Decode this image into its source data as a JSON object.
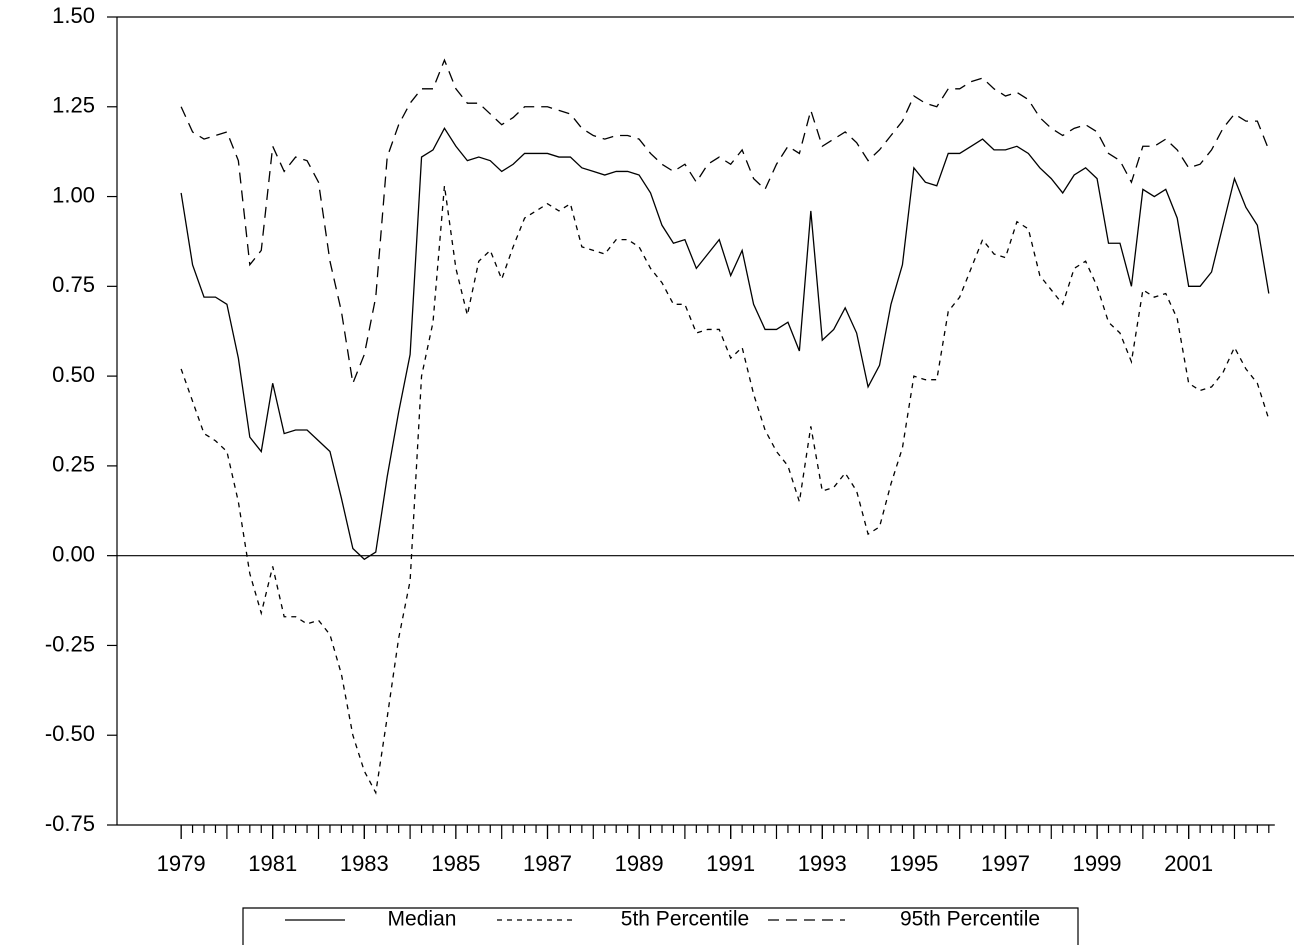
{
  "chart_data": {
    "type": "line",
    "x": [
      1979,
      1979.25,
      1979.5,
      1979.75,
      1980,
      1980.25,
      1980.5,
      1980.75,
      1981,
      1981.25,
      1981.5,
      1981.75,
      1982,
      1982.25,
      1982.5,
      1982.75,
      1983,
      1983.25,
      1983.5,
      1983.75,
      1984,
      1984.25,
      1984.5,
      1984.75,
      1985,
      1985.25,
      1985.5,
      1985.75,
      1986,
      1986.25,
      1986.5,
      1986.75,
      1987,
      1987.25,
      1987.5,
      1987.75,
      1988,
      1988.25,
      1988.5,
      1988.75,
      1989,
      1989.25,
      1989.5,
      1989.75,
      1990,
      1990.25,
      1990.5,
      1990.75,
      1991,
      1991.25,
      1991.5,
      1991.75,
      1992,
      1992.25,
      1992.5,
      1992.75,
      1993,
      1993.25,
      1993.5,
      1993.75,
      1994,
      1994.25,
      1994.5,
      1994.75,
      1995,
      1995.25,
      1995.5,
      1995.75,
      1996,
      1996.25,
      1996.5,
      1996.75,
      1997,
      1997.25,
      1997.5,
      1997.75,
      1998,
      1998.25,
      1998.5,
      1998.75,
      1999,
      1999.25,
      1999.5,
      1999.75,
      2000,
      2000.25,
      2000.5,
      2000.75,
      2001,
      2001.25,
      2001.5,
      2001.75,
      2002,
      2002.25,
      2002.5,
      2002.75
    ],
    "series": [
      {
        "name": "Median",
        "color": "#000000",
        "dash": "solid",
        "values": [
          1.01,
          0.81,
          0.72,
          0.72,
          0.7,
          0.55,
          0.33,
          0.29,
          0.48,
          0.34,
          0.35,
          0.35,
          0.32,
          0.29,
          0.16,
          0.02,
          -0.01,
          0.01,
          0.22,
          0.4,
          0.56,
          1.11,
          1.13,
          1.19,
          1.14,
          1.1,
          1.11,
          1.1,
          1.07,
          1.09,
          1.12,
          1.12,
          1.12,
          1.11,
          1.11,
          1.08,
          1.07,
          1.06,
          1.07,
          1.07,
          1.06,
          1.01,
          0.92,
          0.87,
          0.88,
          0.8,
          0.84,
          0.88,
          0.78,
          0.85,
          0.7,
          0.63,
          0.63,
          0.65,
          0.57,
          0.96,
          0.6,
          0.63,
          0.69,
          0.62,
          0.47,
          0.53,
          0.7,
          0.81,
          1.08,
          1.04,
          1.03,
          1.12,
          1.12,
          1.14,
          1.16,
          1.13,
          1.13,
          1.14,
          1.12,
          1.08,
          1.05,
          1.01,
          1.06,
          1.08,
          1.05,
          0.87,
          0.87,
          0.75,
          1.02,
          1.0,
          1.02,
          0.94,
          0.75,
          0.75,
          0.79,
          0.92,
          1.05,
          0.97,
          0.92,
          0.73
        ]
      },
      {
        "name": "5th Percentile",
        "color": "#000000",
        "dash": "short",
        "values": [
          0.52,
          0.43,
          0.34,
          0.32,
          0.29,
          0.15,
          -0.05,
          -0.16,
          -0.03,
          -0.17,
          -0.17,
          -0.19,
          -0.18,
          -0.22,
          -0.33,
          -0.5,
          -0.6,
          -0.66,
          -0.45,
          -0.23,
          -0.07,
          0.5,
          0.65,
          1.03,
          0.8,
          0.67,
          0.82,
          0.85,
          0.77,
          0.86,
          0.94,
          0.96,
          0.98,
          0.96,
          0.98,
          0.86,
          0.85,
          0.84,
          0.88,
          0.88,
          0.86,
          0.8,
          0.76,
          0.7,
          0.7,
          0.62,
          0.63,
          0.63,
          0.55,
          0.58,
          0.45,
          0.35,
          0.29,
          0.25,
          0.15,
          0.36,
          0.18,
          0.19,
          0.23,
          0.18,
          0.06,
          0.08,
          0.2,
          0.3,
          0.5,
          0.49,
          0.49,
          0.68,
          0.72,
          0.8,
          0.88,
          0.84,
          0.83,
          0.93,
          0.91,
          0.78,
          0.74,
          0.7,
          0.8,
          0.82,
          0.75,
          0.65,
          0.62,
          0.54,
          0.74,
          0.72,
          0.73,
          0.66,
          0.48,
          0.46,
          0.47,
          0.51,
          0.58,
          0.52,
          0.48,
          0.38
        ]
      },
      {
        "name": "95th Percentile",
        "color": "#000000",
        "dash": "long",
        "values": [
          1.25,
          1.18,
          1.16,
          1.17,
          1.18,
          1.1,
          0.81,
          0.85,
          1.14,
          1.07,
          1.11,
          1.1,
          1.04,
          0.82,
          0.68,
          0.48,
          0.56,
          0.72,
          1.11,
          1.2,
          1.26,
          1.3,
          1.3,
          1.38,
          1.3,
          1.26,
          1.26,
          1.23,
          1.2,
          1.22,
          1.25,
          1.25,
          1.25,
          1.24,
          1.23,
          1.19,
          1.17,
          1.16,
          1.17,
          1.17,
          1.16,
          1.12,
          1.09,
          1.07,
          1.09,
          1.04,
          1.09,
          1.11,
          1.09,
          1.13,
          1.05,
          1.02,
          1.09,
          1.14,
          1.12,
          1.24,
          1.14,
          1.16,
          1.18,
          1.15,
          1.1,
          1.13,
          1.17,
          1.21,
          1.28,
          1.26,
          1.25,
          1.3,
          1.3,
          1.32,
          1.33,
          1.3,
          1.28,
          1.29,
          1.27,
          1.22,
          1.19,
          1.17,
          1.19,
          1.2,
          1.18,
          1.12,
          1.1,
          1.04,
          1.14,
          1.14,
          1.16,
          1.13,
          1.08,
          1.09,
          1.13,
          1.19,
          1.23,
          1.21,
          1.21,
          1.13
        ]
      }
    ],
    "xlim": [
      1977.6,
      2003.3
    ],
    "xticks": [
      1979,
      1981,
      1983,
      1985,
      1987,
      1989,
      1991,
      1993,
      1995,
      1997,
      1999,
      2001
    ],
    "ylim": [
      -0.75,
      1.5
    ],
    "yticks": [
      {
        "value": 1.5,
        "label": "1.50"
      },
      {
        "value": 1.25,
        "label": "1.25"
      },
      {
        "value": 1,
        "label": "1.00"
      },
      {
        "value": 0.75,
        "label": "0.75"
      },
      {
        "value": 0.5,
        "label": "0.50"
      },
      {
        "value": 0.25,
        "label": "0.25"
      },
      {
        "value": 0,
        "label": "0.00"
      },
      {
        "value": -0.25,
        "label": "-0.25"
      },
      {
        "value": -0.5,
        "label": "-0.50"
      },
      {
        "value": -0.75,
        "label": "-0.75"
      }
    ],
    "zero_line": true,
    "legend": "bottom"
  }
}
